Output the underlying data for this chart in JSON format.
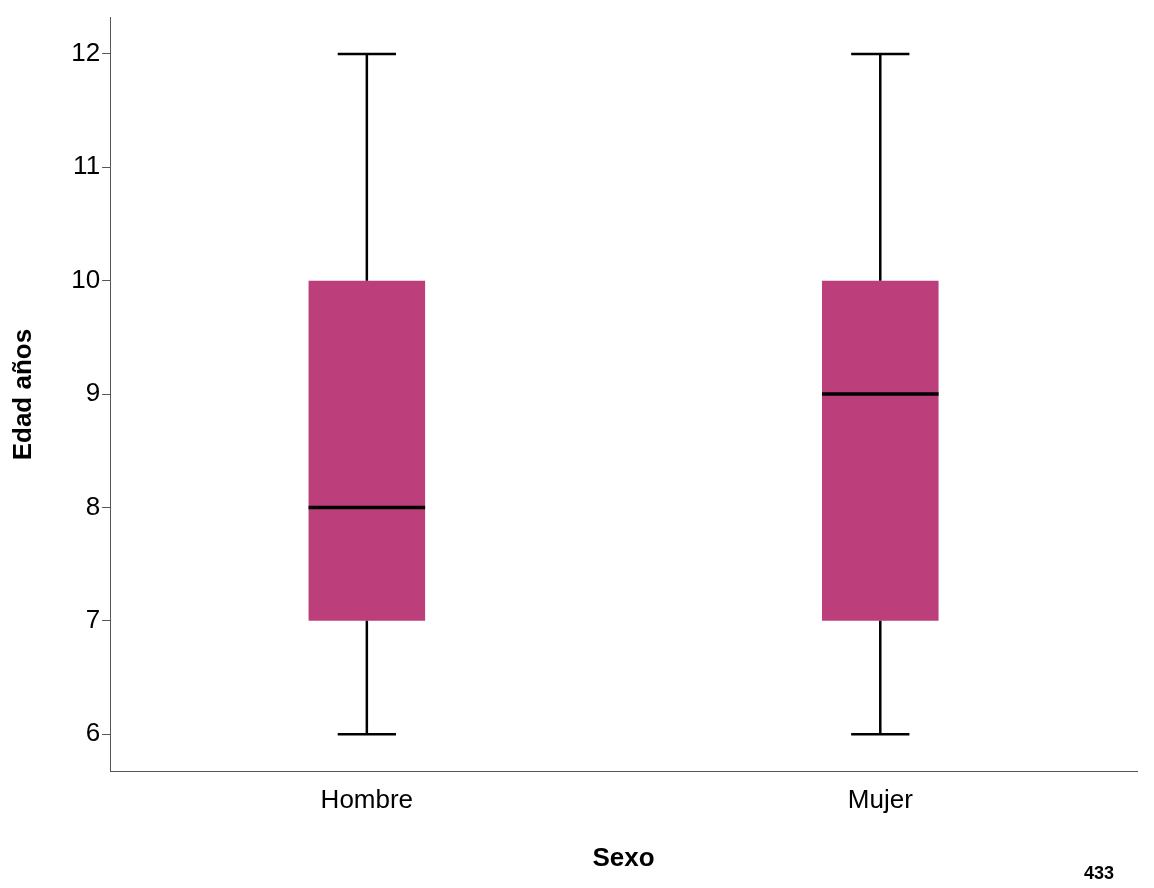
{
  "chart_data": {
    "type": "box",
    "xlabel": "Sexo",
    "ylabel": "Edad años",
    "categories": [
      "Hombre",
      "Mujer"
    ],
    "boxes": [
      {
        "low": 6,
        "q1": 7,
        "median": 8,
        "q3": 10,
        "high": 12
      },
      {
        "low": 6,
        "q1": 7,
        "median": 9,
        "q3": 10,
        "high": 12
      }
    ],
    "color": "#bc3f7b",
    "ylim": [
      5.67,
      12.32
    ],
    "yticks": [
      6,
      7,
      8,
      9,
      10,
      11,
      12
    ],
    "grid": false,
    "legend": false,
    "annotations": [
      "433"
    ]
  }
}
